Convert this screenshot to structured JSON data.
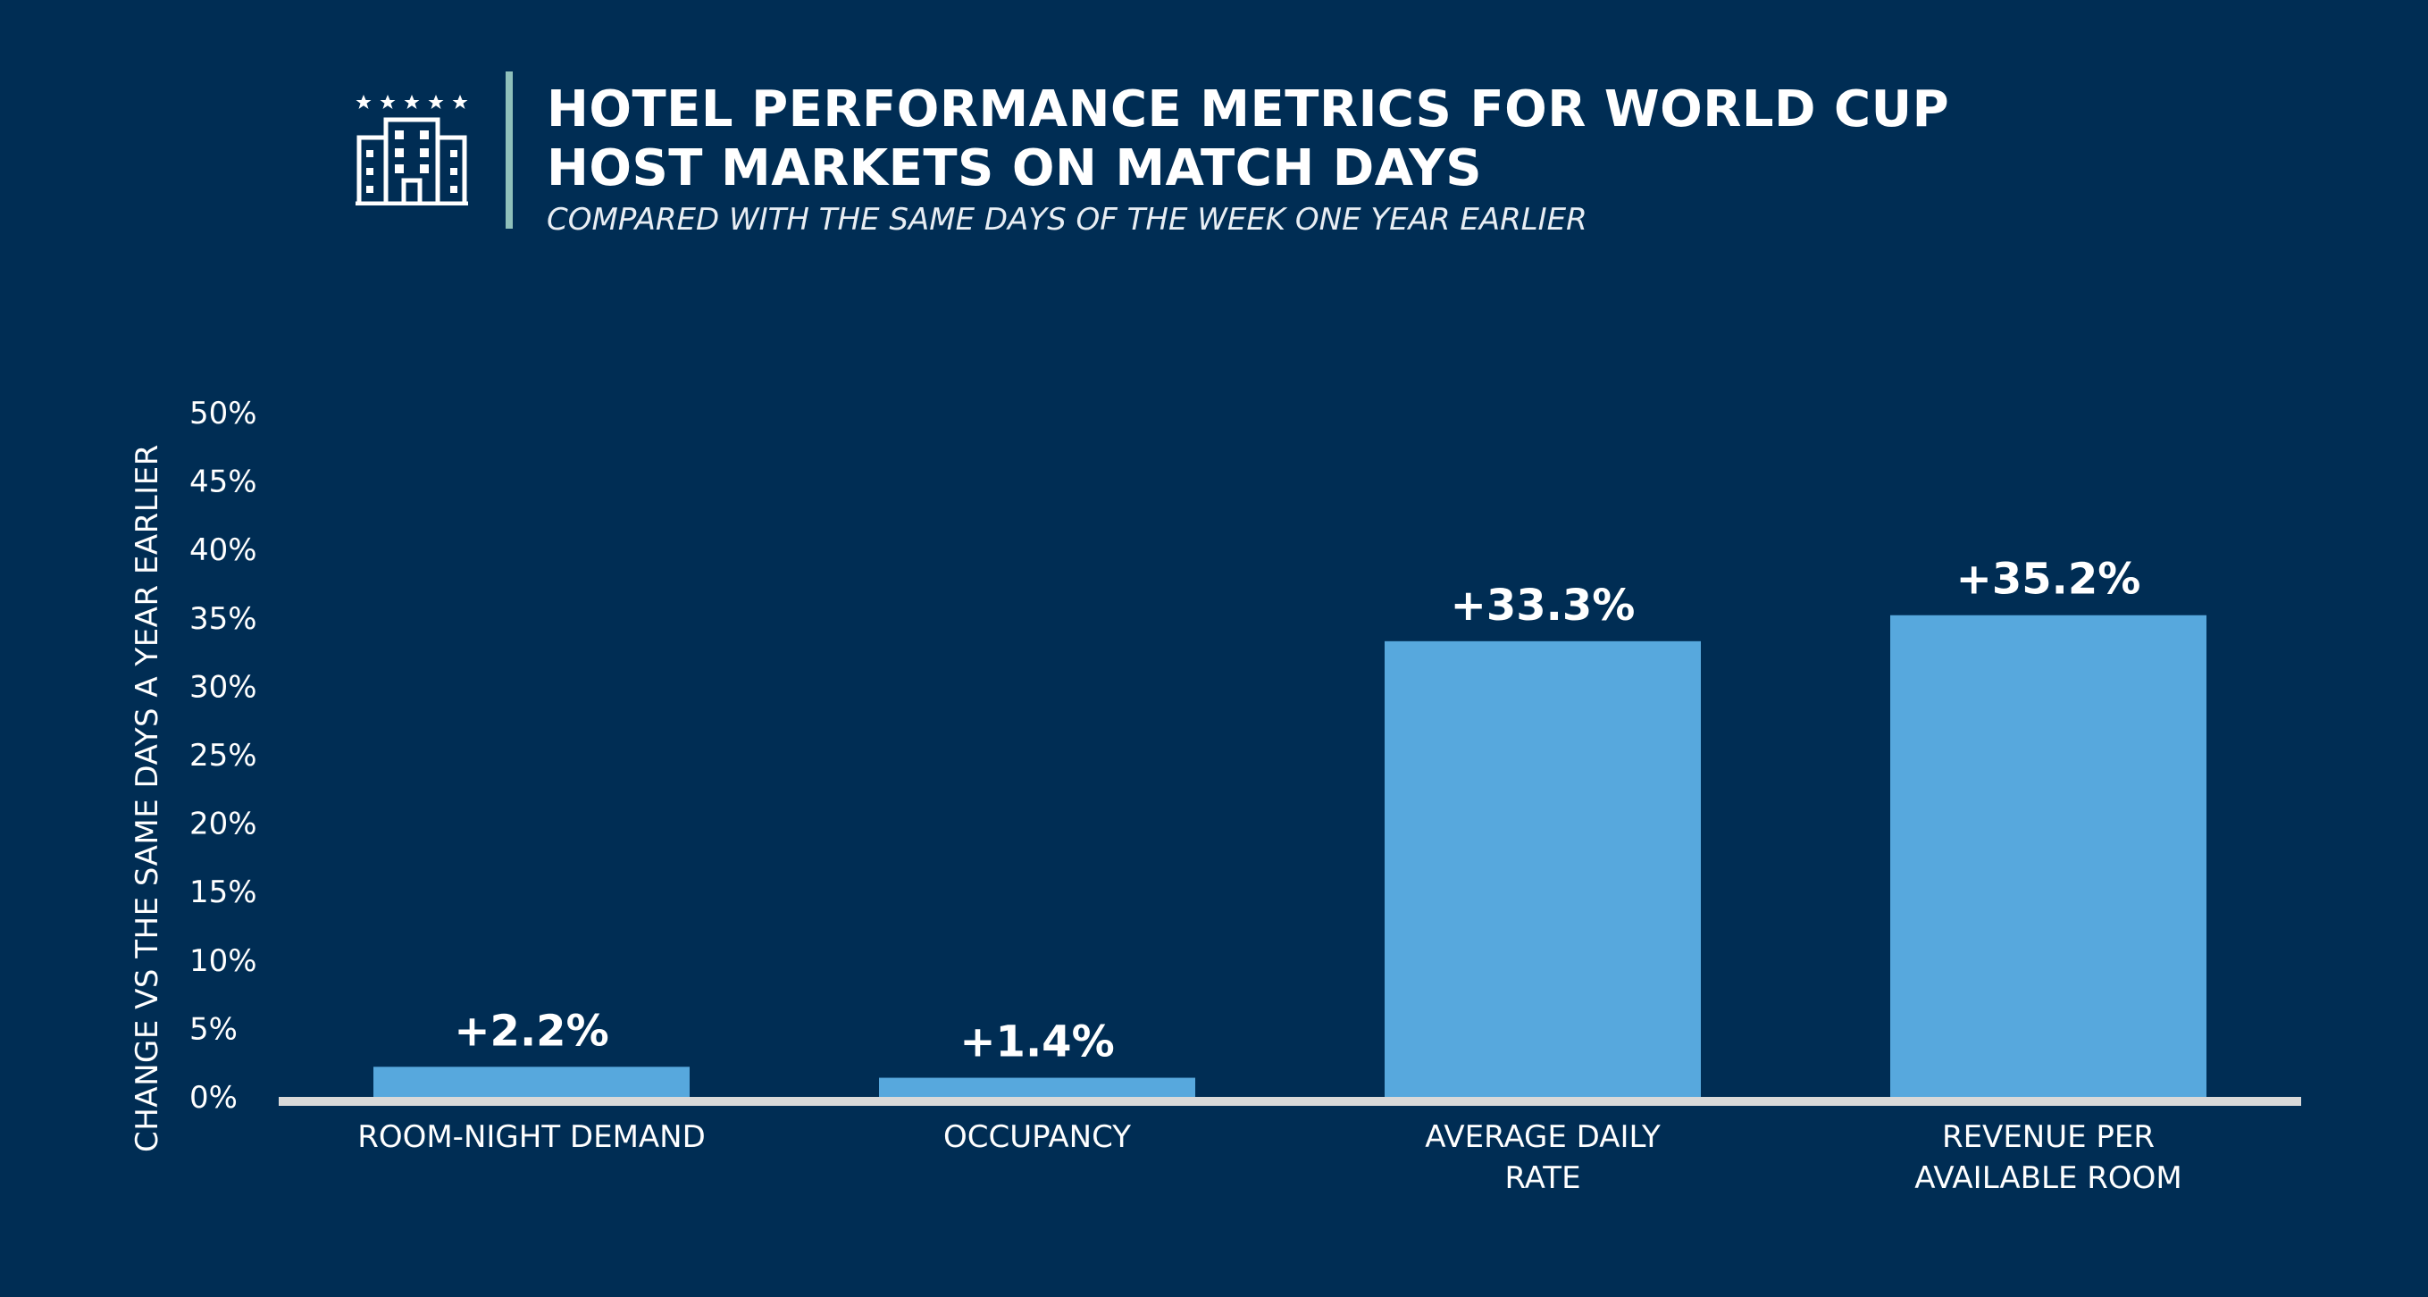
{
  "header": {
    "icon": "hotel-building-icon",
    "title": "HOTEL PERFORMANCE METRICS FOR WORLD CUP\nHOST MARKETS ON MATCH DAYS",
    "subtitle": "COMPARED WITH THE SAME DAYS OF THE WEEK ONE YEAR EARLIER"
  },
  "colors": {
    "background": "#002d54",
    "bar": "#57a8dd",
    "baseline": "#d9d9d9",
    "divider": "#8fc0bb",
    "text": "#ffffff"
  },
  "chart_data": {
    "type": "bar",
    "title": "HOTEL PERFORMANCE METRICS FOR WORLD CUP HOST MARKETS ON MATCH DAYS",
    "subtitle": "COMPARED WITH THE SAME DAYS OF THE WEEK ONE YEAR EARLIER",
    "xlabel": "",
    "ylabel": "CHANGE VS THE SAME DAYS A YEAR EARLIER",
    "ylim": [
      0,
      50
    ],
    "yticks": [
      0,
      5,
      10,
      15,
      20,
      25,
      30,
      35,
      40,
      45,
      50
    ],
    "ytick_labels": [
      "0%",
      "5%",
      "10%",
      "15%",
      "20%",
      "25%",
      "30%",
      "35%",
      "40%",
      "45%",
      "50%"
    ],
    "categories": [
      "ROOM-NIGHT DEMAND",
      "OCCUPANCY",
      "AVERAGE DAILY RATE",
      "REVENUE PER AVAILABLE ROOM"
    ],
    "category_label_lines": [
      [
        "ROOM-NIGHT DEMAND"
      ],
      [
        "OCCUPANCY"
      ],
      [
        "AVERAGE DAILY",
        "RATE"
      ],
      [
        "REVENUE PER",
        "AVAILABLE ROOM"
      ]
    ],
    "values": [
      2.2,
      1.4,
      33.3,
      35.2
    ],
    "data_labels": [
      "+2.2%",
      "+1.4%",
      "+33.3%",
      "+35.2%"
    ],
    "grid": false,
    "legend": "none"
  }
}
